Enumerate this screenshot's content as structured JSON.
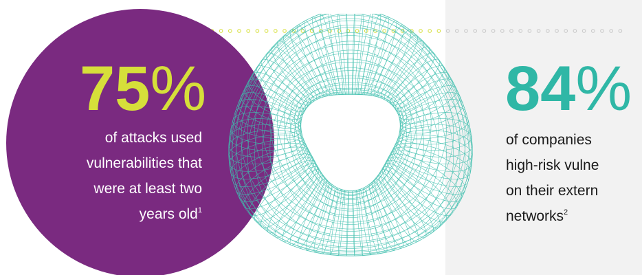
{
  "stat_left": {
    "number": "75",
    "percent_sign": "%",
    "lines": [
      "of attacks used",
      "vulnerabilities that",
      "were at least two",
      "years old"
    ],
    "footnote": "1",
    "number_color": "#d6df3a",
    "circle_color": "#7a2a80"
  },
  "stat_right": {
    "number": "84",
    "percent_sign": "%",
    "lines": [
      "of companies",
      "high-risk vulne",
      "on their extern",
      "networks"
    ],
    "footnote": "2",
    "number_color": "#2fb7a6"
  },
  "decoration": {
    "dot_color_grey": "#c8c8c8",
    "dot_color_yellow": "#d6df3a",
    "mesh_color": "#3fbfae"
  }
}
